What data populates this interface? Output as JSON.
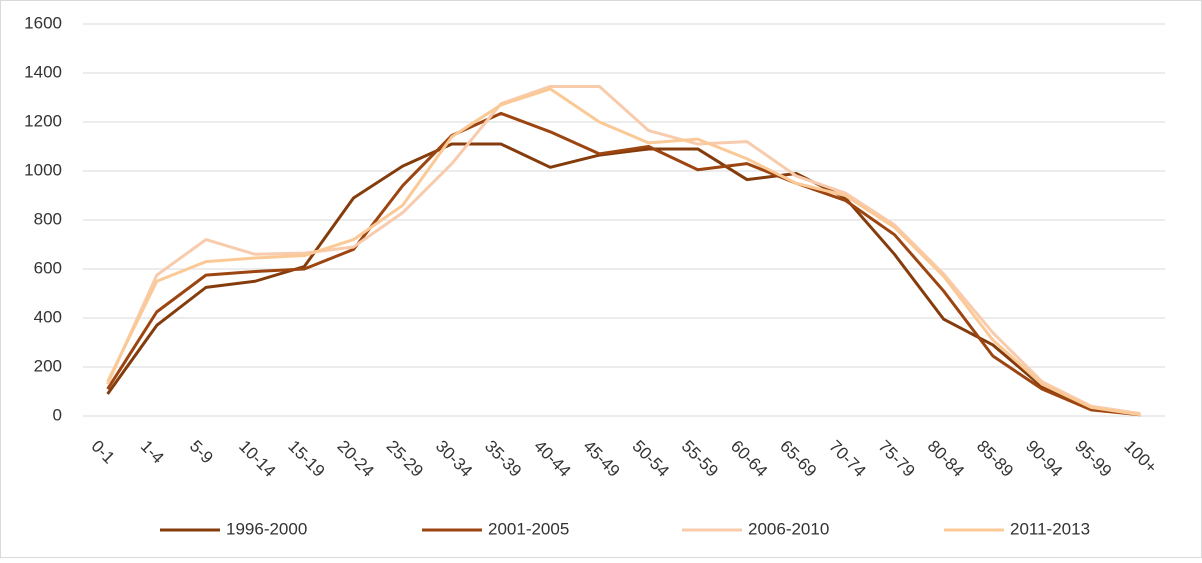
{
  "chart_data": {
    "type": "line",
    "categories": [
      "0-1",
      "1-4",
      "5-9",
      "10-14",
      "15-19",
      "20-24",
      "25-29",
      "30-34",
      "35-39",
      "40-44",
      "45-49",
      "50-54",
      "55-59",
      "60-64",
      "65-69",
      "70-74",
      "75-79",
      "80-84",
      "85-89",
      "90-94",
      "95-99",
      "100+"
    ],
    "series": [
      {
        "name": "1996-2000",
        "color": "#843c0c",
        "values": [
          90,
          370,
          525,
          550,
          610,
          890,
          1020,
          1110,
          1110,
          1015,
          1065,
          1090,
          1090,
          965,
          990,
          890,
          660,
          395,
          290,
          120,
          30,
          5
        ]
      },
      {
        "name": "2001-2005",
        "color": "#9c4510",
        "values": [
          110,
          425,
          575,
          590,
          600,
          680,
          940,
          1145,
          1235,
          1160,
          1070,
          1100,
          1005,
          1030,
          950,
          880,
          740,
          510,
          245,
          110,
          25,
          5
        ]
      },
      {
        "name": "2006-2010",
        "color": "#f8cbad",
        "values": [
          130,
          575,
          720,
          660,
          665,
          690,
          830,
          1030,
          1275,
          1345,
          1345,
          1165,
          1110,
          1120,
          980,
          910,
          780,
          580,
          340,
          140,
          40,
          10
        ]
      },
      {
        "name": "2011-2013",
        "color": "#fbc996",
        "values": [
          140,
          550,
          630,
          645,
          655,
          720,
          860,
          1140,
          1270,
          1335,
          1200,
          1115,
          1130,
          1050,
          950,
          900,
          770,
          570,
          310,
          130,
          35,
          5
        ]
      }
    ],
    "ylim": [
      0,
      1600
    ],
    "yticks": [
      0,
      200,
      400,
      600,
      800,
      1000,
      1200,
      1400,
      1600
    ],
    "grid": true,
    "legend": "bottom"
  }
}
